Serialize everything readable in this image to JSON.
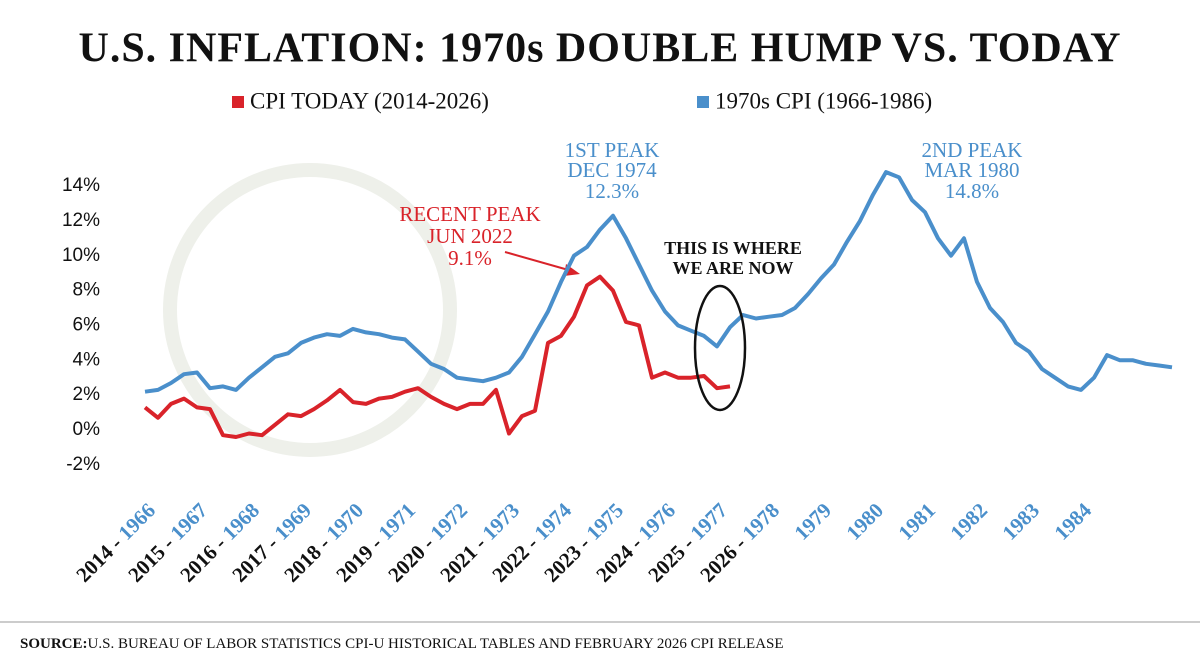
{
  "chart_data": {
    "type": "line",
    "title": "U.S. INFLATION: 1970s DOUBLE HUMP VS. TODAY",
    "x": [
      1966,
      1966.25,
      1966.5,
      1966.75,
      1967,
      1967.25,
      1967.5,
      1967.75,
      1968,
      1968.25,
      1968.5,
      1968.75,
      1969,
      1969.25,
      1969.5,
      1969.75,
      1970,
      1970.25,
      1970.5,
      1970.75,
      1971,
      1971.25,
      1971.5,
      1971.75,
      1972,
      1972.25,
      1972.5,
      1972.75,
      1973,
      1973.25,
      1973.5,
      1973.75,
      1974,
      1974.25,
      1974.5,
      1974.75,
      1975,
      1975.25,
      1975.5,
      1975.75,
      1976,
      1976.25,
      1976.5,
      1976.75,
      1977,
      1977.25,
      1977.5,
      1977.75,
      1978,
      1978.25,
      1978.5,
      1978.75,
      1979,
      1979.25,
      1979.5,
      1979.75,
      1980,
      1980.25,
      1980.5,
      1980.75,
      1981,
      1981.25,
      1981.5,
      1981.75,
      1982,
      1982.25,
      1982.5,
      1982.75,
      1983,
      1983.25,
      1983.5,
      1983.75,
      1984,
      1984.25,
      1984.5,
      1984.75,
      1985,
      1985.25,
      1985.5,
      1985.75
    ],
    "series": [
      {
        "name": "CPI TODAY (2014-2026)",
        "color": "#d9232a",
        "values": [
          1.3,
          0.7,
          1.5,
          1.8,
          1.3,
          1.2,
          -0.3,
          -0.4,
          -0.2,
          -0.3,
          0.3,
          0.9,
          0.8,
          1.2,
          1.7,
          2.3,
          1.6,
          1.5,
          1.8,
          1.9,
          2.2,
          2.4,
          1.9,
          1.5,
          1.2,
          1.5,
          1.5,
          2.3,
          -0.2,
          0.8,
          1.1,
          5.0,
          5.4,
          6.5,
          8.3,
          8.8,
          8.0,
          6.2,
          6.0,
          3.0,
          3.3,
          3.0,
          3.0,
          3.1,
          2.4,
          2.5,
          null,
          null,
          null,
          null,
          null,
          null,
          null,
          null,
          null,
          null,
          null,
          null,
          null,
          null,
          null,
          null,
          null,
          null,
          null,
          null,
          null,
          null,
          null,
          null,
          null,
          null,
          null,
          null,
          null,
          null,
          null,
          null,
          null,
          null
        ]
      },
      {
        "name": "1970s CPI (1966-1986)",
        "color": "#4a8fcb",
        "values": [
          2.2,
          2.3,
          2.7,
          3.2,
          3.3,
          2.4,
          2.5,
          2.3,
          3.0,
          3.6,
          4.2,
          4.4,
          5.0,
          5.3,
          5.5,
          5.4,
          5.8,
          5.6,
          5.5,
          5.3,
          5.2,
          4.5,
          3.8,
          3.5,
          3.0,
          2.9,
          2.8,
          3.0,
          3.3,
          4.2,
          5.5,
          6.8,
          8.5,
          10.0,
          10.5,
          11.5,
          12.3,
          11.0,
          9.5,
          8.0,
          6.8,
          6.0,
          5.7,
          5.4,
          4.8,
          5.9,
          6.6,
          6.4,
          6.5,
          6.6,
          7.0,
          7.8,
          8.7,
          9.5,
          10.8,
          12.0,
          13.5,
          14.8,
          14.5,
          13.2,
          12.5,
          11.0,
          10.0,
          11.0,
          8.5,
          7.0,
          6.2,
          5.0,
          4.5,
          3.5,
          3.0,
          2.5,
          2.3,
          3.0,
          4.3,
          4.0,
          4.0,
          3.8,
          3.7,
          3.6
        ]
      }
    ],
    "xlim": [
      1966,
      1986
    ],
    "xticks": [
      1966,
      1967,
      1968,
      1969,
      1970,
      1971,
      1972,
      1973,
      1974,
      1975,
      1976,
      1977,
      1978,
      1979,
      1980,
      1981,
      1982,
      1983,
      1984
    ],
    "xtick_labels_today": [
      "2014 -",
      "2015 -",
      "2016 -",
      "2017 -",
      "2018 -",
      "2019 -",
      "2020 -",
      "2021 -",
      "2022 -",
      "2023 -",
      "2024 -",
      "2025 -",
      "2026 -"
    ],
    "ylim": [
      -3,
      15
    ],
    "yticks": [
      {
        "value": -2,
        "label": "-2%"
      },
      {
        "value": 0,
        "label": "0%"
      },
      {
        "value": 2,
        "label": "2%"
      },
      {
        "value": 4,
        "label": "4%"
      },
      {
        "value": 6,
        "label": "6%"
      },
      {
        "value": 8,
        "label": "8%"
      },
      {
        "value": 10,
        "label": "10%"
      },
      {
        "value": 12,
        "label": "12%"
      },
      {
        "value": 14,
        "label": "14%"
      }
    ],
    "annotations": {
      "first_peak": [
        "1ST PEAK",
        "DEC 1974",
        "12.3%"
      ],
      "second_peak": [
        "2ND PEAK",
        "MAR 1980",
        "14.8%"
      ],
      "recent_peak": [
        "RECENT PEAK",
        "JUN 2022",
        "9.1%"
      ],
      "now": [
        "THIS IS WHERE",
        "WE ARE NOW"
      ]
    },
    "source": {
      "label": "SOURCE:",
      "text": "U.S. BUREAU OF LABOR STATISTICS CPI-U HISTORICAL TABLES AND FEBRUARY 2026 CPI RELEASE"
    }
  }
}
